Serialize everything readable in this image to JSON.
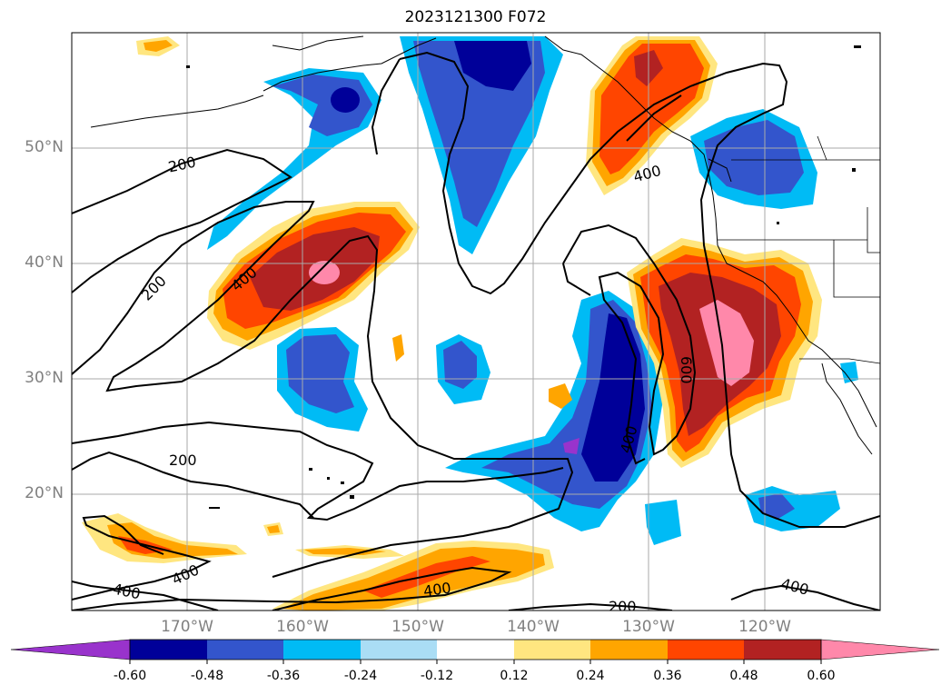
{
  "title": "2023121300 F072",
  "lat_labels": [
    "50°N",
    "40°N",
    "30°N",
    "20°N"
  ],
  "lon_labels": [
    "170°W",
    "160°W",
    "150°W",
    "140°W",
    "130°W",
    "120°W"
  ],
  "colorbar": {
    "ticks": [
      "-0.60",
      "-0.48",
      "-0.36",
      "-0.24",
      "-0.12",
      "0.12",
      "0.24",
      "0.36",
      "0.48",
      "0.60"
    ],
    "colors": [
      "#9933cc",
      "#000099",
      "#3355cc",
      "#00bbf5",
      "#aaddf5",
      "#ffffff",
      "#ffe680",
      "#ffa500",
      "#ff4500",
      "#b22222",
      "#ff88aa"
    ],
    "extend": "both"
  },
  "contour_labels": [
    "200",
    "200",
    "400",
    "400",
    "200",
    "400",
    "400",
    "400",
    "200",
    "400",
    "600",
    "400"
  ],
  "map": {
    "projection": "cylindrical",
    "lon_range": [
      "180°W",
      "110°W"
    ],
    "lat_range": [
      "10°N",
      "60°N"
    ],
    "grid": true,
    "coastlines": true,
    "borders": true
  }
}
